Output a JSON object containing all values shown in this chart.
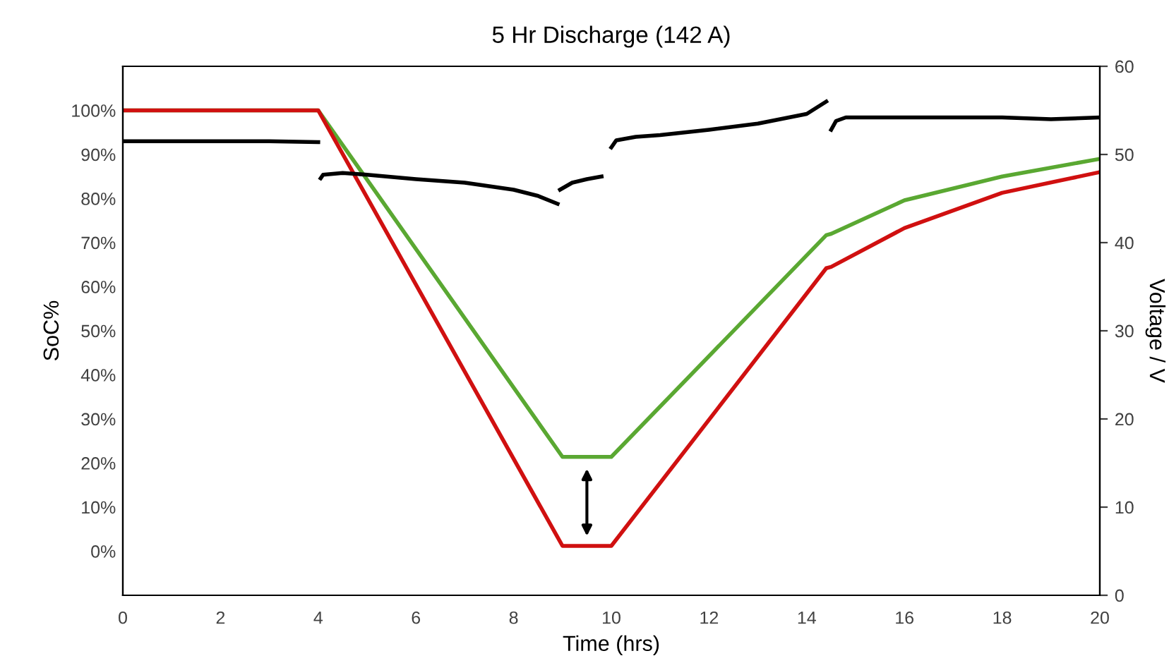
{
  "chart_data": {
    "type": "line",
    "title": "5 Hr Discharge (142 A)",
    "xlabel": "Time (hrs)",
    "ylabel": "SoC%",
    "y2label": "Voltage / V",
    "xlim": [
      0,
      20
    ],
    "xticks": [
      0,
      2,
      4,
      6,
      8,
      10,
      12,
      14,
      16,
      18,
      20
    ],
    "ylim": [
      -10,
      110
    ],
    "yticks": [
      {
        "value": 0,
        "label": "0%"
      },
      {
        "value": 10,
        "label": "10%"
      },
      {
        "value": 20,
        "label": "20%"
      },
      {
        "value": 30,
        "label": "30%"
      },
      {
        "value": 40,
        "label": "40%"
      },
      {
        "value": 50,
        "label": "50%"
      },
      {
        "value": 60,
        "label": "60%"
      },
      {
        "value": 70,
        "label": "70%"
      },
      {
        "value": 80,
        "label": "80%"
      },
      {
        "value": 90,
        "label": "90%"
      },
      {
        "value": 100,
        "label": "100%"
      }
    ],
    "y2lim": [
      0,
      60
    ],
    "y2ticks": [
      0,
      10,
      20,
      30,
      40,
      50,
      60
    ],
    "grid": false,
    "marker": "none",
    "line_style": "solid",
    "series": [
      {
        "color": "#5aa832",
        "x": [
          0,
          4,
          9,
          10,
          14.4,
          14.5,
          16,
          18,
          20
        ],
        "values": [
          100,
          100,
          21.4,
          21.4,
          71.7,
          72,
          79.6,
          85,
          89
        ]
      },
      {
        "color": "#d01010",
        "x": [
          0,
          4,
          9,
          10,
          14.4,
          14.5,
          16,
          18,
          20
        ],
        "values": [
          100,
          100,
          1.2,
          1.2,
          64.2,
          64.5,
          73.3,
          81.3,
          86
        ]
      },
      {
        "color": "#000000",
        "axis": "y2",
        "x": [
          0,
          1,
          2,
          3,
          4,
          4.02,
          4.05,
          4.1,
          4.5,
          5,
          6,
          7,
          8,
          8.5,
          8.9,
          8.92,
          8.95,
          9.2,
          9.5,
          9.8,
          9.9,
          10.0,
          10.1,
          10.5,
          11,
          12,
          13,
          14,
          14.4,
          14.45,
          14.5,
          14.6,
          14.8,
          16,
          18,
          19,
          20
        ],
        "values": [
          51.5,
          51.5,
          51.5,
          51.5,
          51.4,
          null,
          47.3,
          47.7,
          47.9,
          47.7,
          47.2,
          46.8,
          46.0,
          45.3,
          44.4,
          null,
          46.0,
          46.8,
          47.2,
          47.5,
          null,
          50.8,
          51.6,
          52.0,
          52.2,
          52.8,
          53.5,
          54.6,
          56.0,
          null,
          52.8,
          53.8,
          54.2,
          54.2,
          54.2,
          54.0,
          54.2
        ]
      }
    ]
  }
}
